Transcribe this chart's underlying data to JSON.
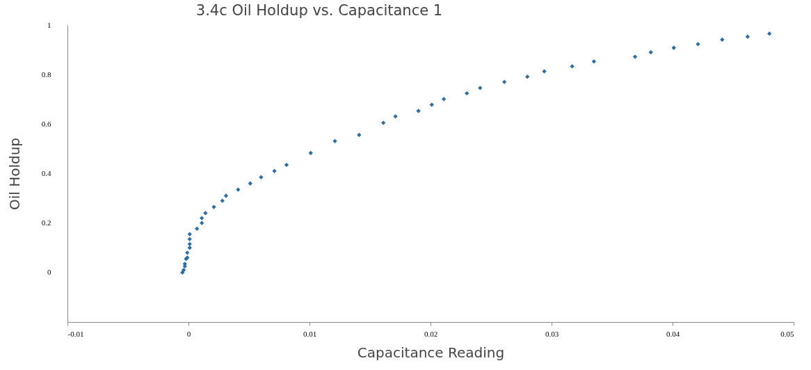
{
  "chart_data": {
    "type": "scatter",
    "title": "3.4c  Oil Holdup vs. Capacitance 1",
    "xlabel": "Capacitance Reading",
    "ylabel": "Oil Holdup",
    "x": [
      -0.0005,
      -0.0004,
      -0.0003,
      -0.0003,
      -0.0002,
      -0.0001,
      -0.0001,
      0.0001,
      0.0001,
      0.0001,
      0.0001,
      0.0007,
      0.0011,
      0.0011,
      0.0014,
      0.0021,
      0.0028,
      0.0031,
      0.0041,
      0.0051,
      0.006,
      0.0071,
      0.0081,
      0.0101,
      0.0121,
      0.0141,
      0.0161,
      0.0171,
      0.019,
      0.0201,
      0.0211,
      0.023,
      0.0241,
      0.0261,
      0.028,
      0.0294,
      0.0317,
      0.0335,
      0.0369,
      0.0382,
      0.0401,
      0.0421,
      0.0441,
      0.0462,
      0.048
    ],
    "series": [
      {
        "color": "#2e6da4",
        "values": [
          0.0,
          0.01,
          0.025,
          0.035,
          0.055,
          0.06,
          0.08,
          0.1,
          0.115,
          0.135,
          0.155,
          0.177,
          0.2,
          0.22,
          0.24,
          0.265,
          0.29,
          0.31,
          0.335,
          0.36,
          0.385,
          0.41,
          0.435,
          0.483,
          0.531,
          0.556,
          0.605,
          0.631,
          0.653,
          0.678,
          0.701,
          0.724,
          0.746,
          0.77,
          0.791,
          0.813,
          0.833,
          0.853,
          0.872,
          0.89,
          0.908,
          0.923,
          0.941,
          0.953,
          0.965
        ]
      }
    ],
    "xlim": [
      -0.01,
      0.05
    ],
    "xticks": [
      -0.01,
      0,
      0.01,
      0.02,
      0.03,
      0.04,
      0.05
    ],
    "ylim": [
      -0.2,
      1
    ],
    "yticks": [
      0,
      0.2,
      0.4,
      0.6,
      0.8,
      1
    ],
    "marker": "diamond",
    "grid": false,
    "legend": false
  }
}
